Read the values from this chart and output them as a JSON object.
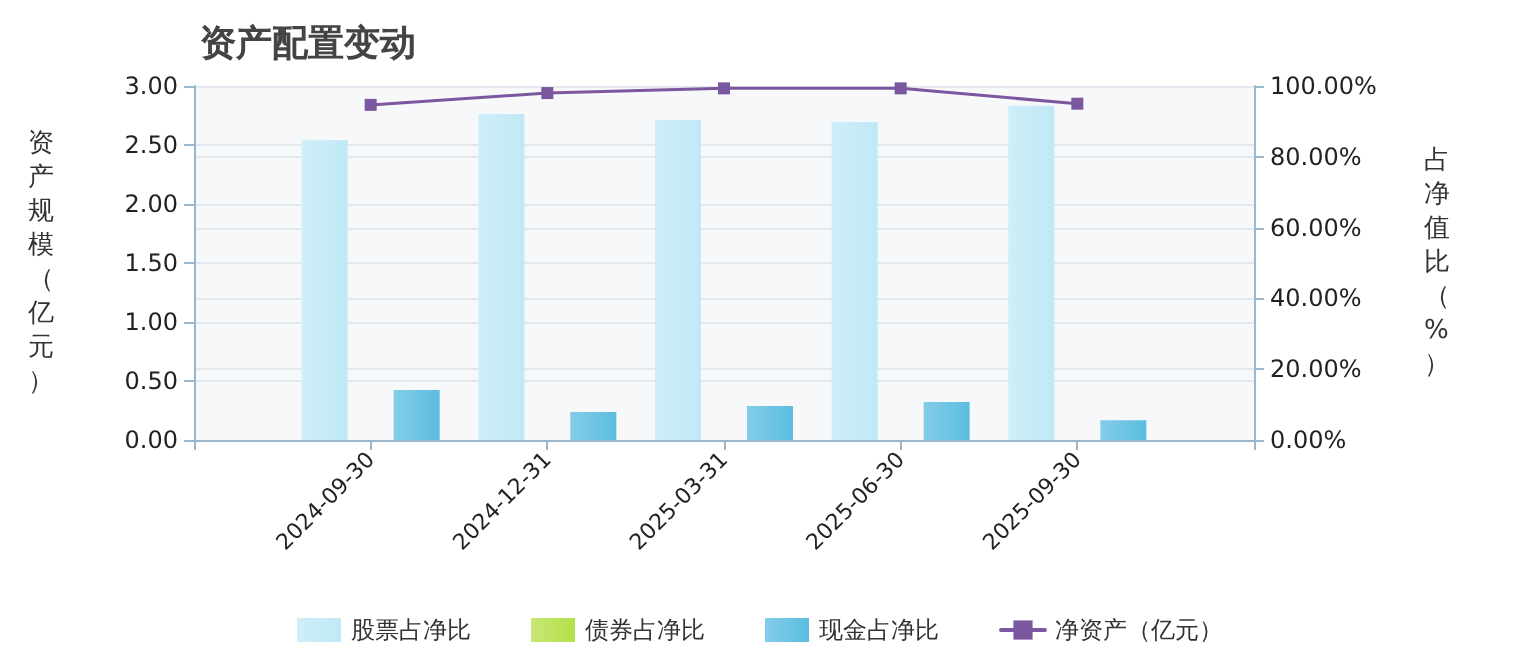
{
  "chart_data": {
    "type": "bar",
    "title": "资产配置变动",
    "ylabel": "资产规模（亿元）",
    "y2label": "占净值比（%）",
    "categories": [
      null,
      "2024-09-30",
      "2024-12-31",
      "2025-03-31",
      "2025-06-30",
      "2025-09-30",
      null
    ],
    "series": [
      {
        "name": "股票占净比",
        "color": "#bfe9f6",
        "axis": "y2",
        "values": [
          null,
          84.7,
          92.1,
          90.4,
          89.8,
          94.4,
          null
        ]
      },
      {
        "name": "债券占净比",
        "color": "#b5e04a",
        "axis": "y2",
        "values": [
          null,
          0,
          0,
          0,
          0,
          0,
          null
        ]
      },
      {
        "name": "现金占净比",
        "color": "#5bbde0",
        "axis": "y2",
        "values": [
          null,
          14.1,
          7.9,
          9.6,
          10.7,
          5.6,
          null
        ]
      },
      {
        "name": "净资产（亿元）",
        "type": "line",
        "color": "#7b57a0",
        "axis": "y",
        "marker": "square",
        "values": [
          null,
          2.84,
          2.94,
          2.98,
          2.98,
          2.85,
          null
        ]
      }
    ],
    "ylim": [
      0,
      3
    ],
    "yticks": [
      {
        "value": 0,
        "label": "0.00"
      },
      {
        "value": 0.5,
        "label": "0.50"
      },
      {
        "value": 1,
        "label": "1.00"
      },
      {
        "value": 1.5,
        "label": "1.50"
      },
      {
        "value": 2,
        "label": "2.00"
      },
      {
        "value": 2.5,
        "label": "2.50"
      },
      {
        "value": 3,
        "label": "3.00"
      }
    ],
    "y2lim": [
      0,
      100
    ],
    "y2ticks": [
      {
        "value": 0,
        "label": "0.00%"
      },
      {
        "value": 20,
        "label": "20.00%"
      },
      {
        "value": 40,
        "label": "40.00%"
      },
      {
        "value": 60,
        "label": "60.00%"
      },
      {
        "value": 80,
        "label": "80.00%"
      },
      {
        "value": 100,
        "label": "100.00%"
      }
    ],
    "grid": true,
    "legend": "bottom"
  }
}
